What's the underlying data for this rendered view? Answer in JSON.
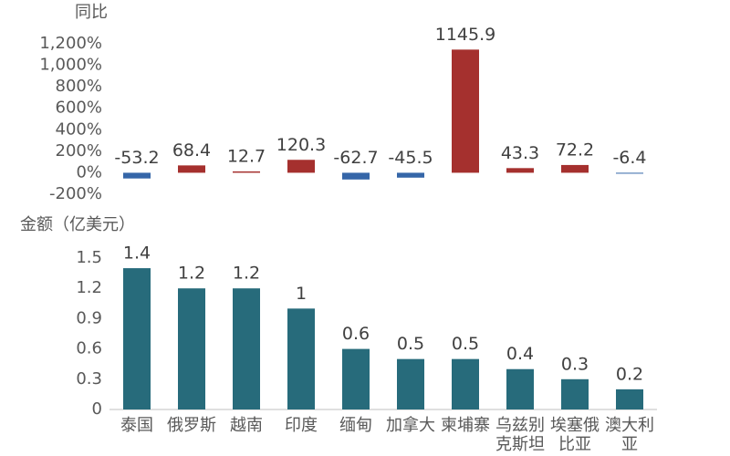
{
  "chart_data": [
    {
      "type": "bar",
      "title": "同比",
      "values": [
        -53.2,
        68.4,
        12.7,
        120.3,
        -62.7,
        -45.5,
        1145.9,
        43.3,
        72.2,
        -6.4
      ],
      "positive_color": "#a5302e",
      "negative_color": "#3566a8",
      "ylim": [
        -200,
        1200
      ],
      "yticks": [
        {
          "value": -200,
          "label": "-200%"
        },
        {
          "value": 0,
          "label": "0%"
        },
        {
          "value": 200,
          "label": "200%"
        },
        {
          "value": 400,
          "label": "400%"
        },
        {
          "value": 600,
          "label": "600%"
        },
        {
          "value": 800,
          "label": "800%"
        },
        {
          "value": 1000,
          "label": "1,000%"
        },
        {
          "value": 1200,
          "label": "1,200%"
        }
      ]
    },
    {
      "type": "bar",
      "title": "金额（亿美元）",
      "categories": [
        "泰国",
        "俄罗斯",
        "越南",
        "印度",
        "缅甸",
        "加拿大",
        "柬埔寨",
        "乌兹别克斯坦",
        "埃塞俄比亚",
        "澳大利亚"
      ],
      "values": [
        1.4,
        1.2,
        1.2,
        1,
        0.6,
        0.5,
        0.5,
        0.4,
        0.3,
        0.2
      ],
      "color": "#276b7b",
      "ylim": [
        0,
        1.5
      ],
      "yticks": [
        0,
        0.3,
        0.6,
        0.9,
        1.2,
        1.5
      ]
    }
  ]
}
